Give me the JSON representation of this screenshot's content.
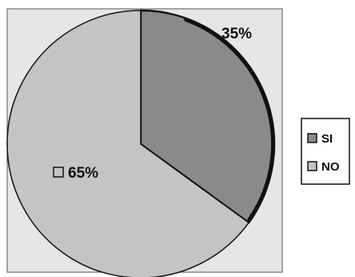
{
  "chart_data": {
    "type": "pie",
    "slices": [
      {
        "label": "SI",
        "value": 35,
        "display": "35%",
        "color": "#8a8a8a"
      },
      {
        "label": "NO",
        "value": 65,
        "display": "65%",
        "color": "#c4c4c4"
      }
    ],
    "legend": {
      "placement": "right",
      "entries": [
        "SI",
        "NO"
      ]
    }
  },
  "colors": {
    "plot_background": "#e6e6e6",
    "outline": "#111111"
  }
}
